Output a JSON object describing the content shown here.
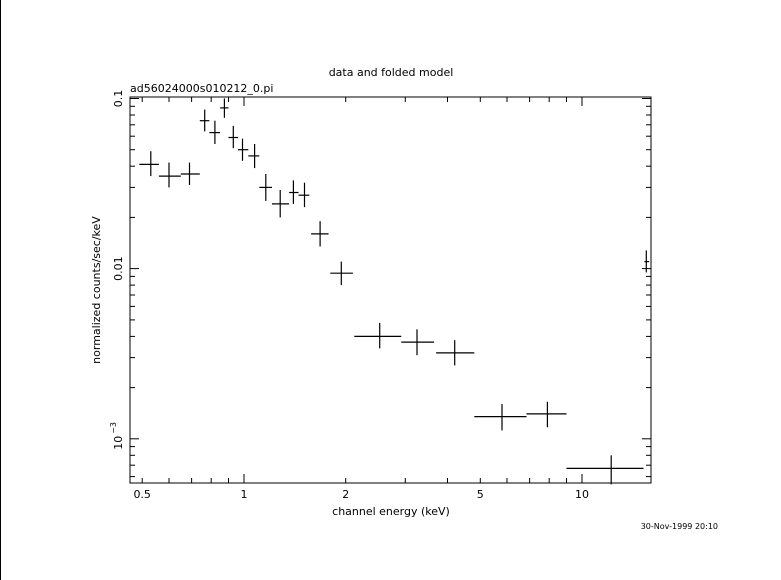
{
  "chart_data": {
    "type": "scatter",
    "title": "data and folded model",
    "subtitle": "ad56024000s010212_0.pi",
    "xlabel": "channel energy (keV)",
    "ylabel": "normalized counts/sec/keV",
    "x_scale": "log",
    "y_scale": "log",
    "xlim": [
      0.46,
      16.0
    ],
    "ylim": [
      0.00055,
      0.102
    ],
    "x_ticks": [
      {
        "value": 0.5,
        "label": "0.5"
      },
      {
        "value": 1,
        "label": "1"
      },
      {
        "value": 2,
        "label": "2"
      },
      {
        "value": 5,
        "label": "5"
      },
      {
        "value": 10,
        "label": "10"
      }
    ],
    "y_ticks": [
      {
        "value": 0.1,
        "label": "0.1",
        "kind": "plain"
      },
      {
        "value": 0.01,
        "label": "0.01",
        "kind": "plain"
      },
      {
        "value": 0.001,
        "label": "10",
        "kind": "power",
        "exponent": "−3"
      }
    ],
    "grid": false,
    "legend": "none",
    "series": [
      {
        "points": [
          {
            "x": 0.53,
            "y": 0.041,
            "xlo": 0.49,
            "xhi": 0.56,
            "ylo": 0.035,
            "yhi": 0.049
          },
          {
            "x": 0.6,
            "y": 0.035,
            "xlo": 0.56,
            "xhi": 0.65,
            "ylo": 0.03,
            "yhi": 0.042
          },
          {
            "x": 0.69,
            "y": 0.036,
            "xlo": 0.65,
            "xhi": 0.74,
            "ylo": 0.031,
            "yhi": 0.042
          },
          {
            "x": 0.765,
            "y": 0.074,
            "xlo": 0.74,
            "xhi": 0.79,
            "ylo": 0.064,
            "yhi": 0.086
          },
          {
            "x": 0.82,
            "y": 0.063,
            "xlo": 0.79,
            "xhi": 0.85,
            "ylo": 0.054,
            "yhi": 0.074
          },
          {
            "x": 0.875,
            "y": 0.088,
            "xlo": 0.85,
            "xhi": 0.9,
            "ylo": 0.077,
            "yhi": 0.1
          },
          {
            "x": 0.93,
            "y": 0.059,
            "xlo": 0.9,
            "xhi": 0.96,
            "ylo": 0.051,
            "yhi": 0.069
          },
          {
            "x": 0.99,
            "y": 0.05,
            "xlo": 0.96,
            "xhi": 1.03,
            "ylo": 0.043,
            "yhi": 0.058
          },
          {
            "x": 1.075,
            "y": 0.046,
            "xlo": 1.03,
            "xhi": 1.11,
            "ylo": 0.039,
            "yhi": 0.054
          },
          {
            "x": 1.16,
            "y": 0.03,
            "xlo": 1.11,
            "xhi": 1.21,
            "ylo": 0.025,
            "yhi": 0.036
          },
          {
            "x": 1.28,
            "y": 0.024,
            "xlo": 1.21,
            "xhi": 1.36,
            "ylo": 0.02,
            "yhi": 0.029
          },
          {
            "x": 1.4,
            "y": 0.028,
            "xlo": 1.36,
            "xhi": 1.45,
            "ylo": 0.024,
            "yhi": 0.033
          },
          {
            "x": 1.51,
            "y": 0.027,
            "xlo": 1.45,
            "xhi": 1.56,
            "ylo": 0.023,
            "yhi": 0.032
          },
          {
            "x": 1.68,
            "y": 0.016,
            "xlo": 1.58,
            "xhi": 1.78,
            "ylo": 0.0135,
            "yhi": 0.019
          },
          {
            "x": 1.94,
            "y": 0.0094,
            "xlo": 1.8,
            "xhi": 2.1,
            "ylo": 0.008,
            "yhi": 0.011
          },
          {
            "x": 2.52,
            "y": 0.004,
            "xlo": 2.12,
            "xhi": 2.92,
            "ylo": 0.0034,
            "yhi": 0.0048
          },
          {
            "x": 3.25,
            "y": 0.0037,
            "xlo": 2.92,
            "xhi": 3.65,
            "ylo": 0.0031,
            "yhi": 0.0044
          },
          {
            "x": 4.2,
            "y": 0.0032,
            "xlo": 3.7,
            "xhi": 4.8,
            "ylo": 0.0027,
            "yhi": 0.0038
          },
          {
            "x": 5.8,
            "y": 0.00135,
            "xlo": 4.8,
            "xhi": 6.85,
            "ylo": 0.00112,
            "yhi": 0.0016
          },
          {
            "x": 7.9,
            "y": 0.0014,
            "xlo": 6.85,
            "xhi": 9.0,
            "ylo": 0.00117,
            "yhi": 0.00165
          },
          {
            "x": 12.2,
            "y": 0.00067,
            "xlo": 9.0,
            "xhi": 15.2,
            "ylo": 0.00054,
            "yhi": 0.0008
          },
          {
            "x": 15.5,
            "y": 0.011,
            "xlo": 15.3,
            "xhi": 15.8,
            "ylo": 0.0095,
            "yhi": 0.0128
          }
        ]
      }
    ]
  },
  "footer": {
    "timestamp": "30-Nov-1999 20:10"
  }
}
